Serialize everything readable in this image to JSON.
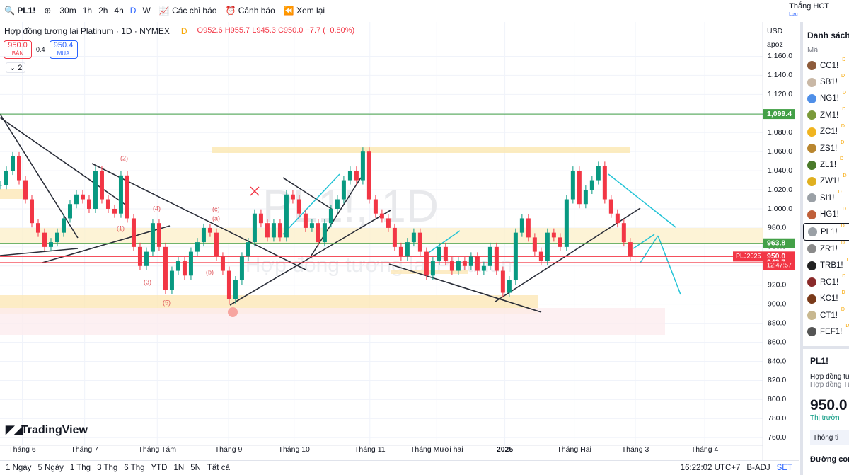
{
  "toolbar": {
    "symbol": "PL1!",
    "intervals": [
      "30m",
      "1h",
      "2h",
      "4h",
      "D",
      "W"
    ],
    "indicators": "Các chỉ báo",
    "alerts": "Cảnh báo",
    "replay": "Xem lại",
    "user": "Thắng HCT",
    "user_sub": "Lưu"
  },
  "legend": {
    "title": "Hợp đồng tương lai Platinum · 1D · NYMEX",
    "flag": "D",
    "o": "O952.6",
    "h": "H955.7",
    "l": "L945.3",
    "c": "C950.0",
    "change": "−7.7 (−0.80%)",
    "sell_price": "950.0",
    "sell": "BÁN",
    "spread": "0.4",
    "buy_price": "950.4",
    "buy": "MUA",
    "count": "2"
  },
  "chart_data": {
    "type": "candlestick",
    "up_color": "#089981",
    "down_color": "#f23645",
    "watermark": "PL1!, 1D",
    "watermark_sub": "Hợp đồng tương lai Platinum",
    "values": [
      1025,
      1040,
      1055,
      1030,
      1010,
      985,
      975,
      960,
      965,
      975,
      990,
      1005,
      1015,
      1010,
      1000,
      1040,
      1010,
      1000,
      995,
      1035,
      990,
      960,
      940,
      955,
      985,
      960,
      915,
      935,
      945,
      930,
      955,
      965,
      980,
      975,
      950,
      935,
      905,
      925,
      950,
      965,
      995,
      985,
      970,
      985,
      970,
      1015,
      1010,
      995,
      980,
      985,
      965,
      985,
      1000,
      1010,
      1030,
      1040,
      1030,
      1060,
      1010,
      995,
      990,
      980,
      960,
      950,
      965,
      975,
      955,
      930,
      945,
      960,
      945,
      935,
      945,
      940,
      950,
      935,
      940,
      960,
      935,
      912,
      925,
      975,
      990,
      970,
      955,
      945,
      975,
      970,
      960,
      1010,
      1040,
      1005,
      1020,
      1030,
      1045,
      1010,
      995,
      985,
      965,
      950
    ],
    "xlim": [
      0,
      119.8
    ],
    "xticks": [
      {
        "value": 3.5,
        "label": "Tháng 6"
      },
      {
        "value": 13.3,
        "label": "Tháng 7"
      },
      {
        "value": 24.7,
        "label": "Tháng Tám"
      },
      {
        "value": 35.9,
        "label": "Tháng 9"
      },
      {
        "value": 46.2,
        "label": "Tháng 10"
      },
      {
        "value": 58.1,
        "label": "Tháng 11"
      },
      {
        "value": 68.6,
        "label": "Tháng Mười hai"
      },
      {
        "value": 79.3,
        "label": "2025"
      },
      {
        "value": 90.2,
        "label": "Tháng Hai"
      },
      {
        "value": 99.8,
        "label": "Tháng 3"
      },
      {
        "value": 110.7,
        "label": "Tháng 4"
      }
    ],
    "ylim": [
      755,
      1193
    ],
    "yticks": [
      {
        "value": 760,
        "label": "760.0"
      },
      {
        "value": 780,
        "label": "780.0"
      },
      {
        "value": 800,
        "label": "800.0"
      },
      {
        "value": 820,
        "label": "820.0"
      },
      {
        "value": 840,
        "label": "840.0"
      },
      {
        "value": 860,
        "label": "860.0"
      },
      {
        "value": 880,
        "label": "880.0"
      },
      {
        "value": 900,
        "label": "900.0"
      },
      {
        "value": 920,
        "label": "920.0"
      },
      {
        "value": 940,
        "label": "940.0"
      },
      {
        "value": 960,
        "label": "960.0"
      },
      {
        "value": 980,
        "label": "980.0"
      },
      {
        "value": 1000,
        "label": "1,000.0"
      },
      {
        "value": 1020,
        "label": "1,020.0"
      },
      {
        "value": 1040,
        "label": "1,040.0"
      },
      {
        "value": 1060,
        "label": "1,060.0"
      },
      {
        "value": 1080,
        "label": "1,080.0"
      },
      {
        "value": 1100,
        "label": "1,100.0"
      },
      {
        "value": 1120,
        "label": "1,120.0"
      },
      {
        "value": 1140,
        "label": "1,140.0"
      },
      {
        "value": 1160,
        "label": "1,160.0"
      }
    ],
    "grid": true,
    "price_lines": [
      {
        "value": 1099.4,
        "label": "1,099.4",
        "color": "#43a047"
      },
      {
        "value": 963.8,
        "label": "963.8",
        "color": "#43a047"
      },
      {
        "value": 950,
        "label": "950.0",
        "color": "#f23645"
      },
      {
        "value": 943.7,
        "label": "943.7",
        "color": "#f23645"
      }
    ],
    "contract": "PLJ2025",
    "countdown": "12:47:57",
    "currency": "USD",
    "scale_mode": "apoz",
    "waves": [
      "(1)",
      "(2)",
      "(3)",
      "(4)",
      "(5)",
      "(a)",
      "(b)",
      "(c)"
    ],
    "logo": "TradingView"
  },
  "watchlist": {
    "title": "Danh sách",
    "column": "Mã",
    "items": [
      "CC1!",
      "SB1!",
      "NG1!",
      "ZM1!",
      "ZC1!",
      "ZS1!",
      "ZL1!",
      "ZW1!",
      "SI1!",
      "HG1!",
      "PL1!",
      "ZR1!",
      "TRB1!",
      "RC1!",
      "KC1!",
      "CT1!",
      "FEF1!"
    ],
    "flag": "D"
  },
  "details": {
    "symbol": "PL1!",
    "name": "Hợp đồng tươ",
    "name2": "Hợp đồng Tư",
    "price": "950.0",
    "status": "Thị trườn",
    "info": "Thông ti",
    "curve": "Đường con"
  },
  "bottom": {
    "ranges": [
      "1 Ngày",
      "5 Ngày",
      "1 Thg",
      "3 Thg",
      "6 Thg",
      "YTD",
      "1N",
      "5N",
      "Tất cả"
    ],
    "time": "16:22:02 UTC+7",
    "adj": "B-ADJ",
    "session": "SET"
  }
}
